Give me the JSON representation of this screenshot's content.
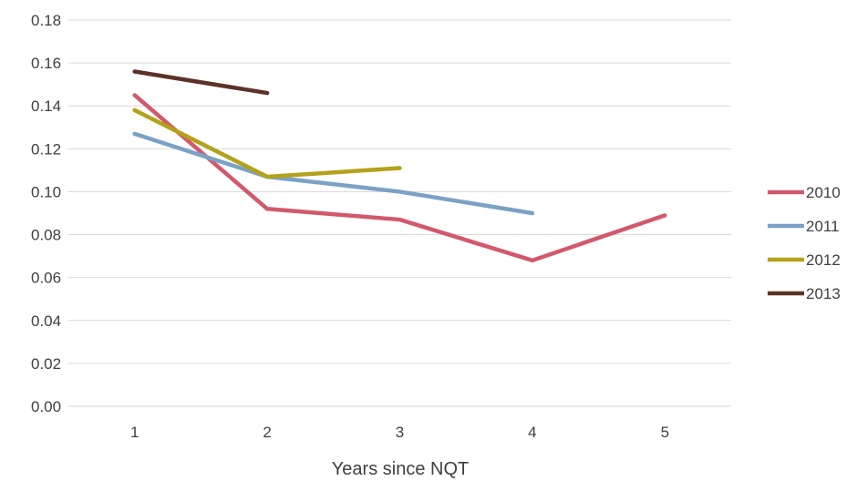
{
  "chart_data": {
    "type": "line",
    "title": "",
    "xlabel": "Years since NQT",
    "ylabel": "",
    "categories": [
      "1",
      "2",
      "3",
      "4",
      "5"
    ],
    "ylim": [
      0,
      0.18
    ],
    "yticks": [
      "0.00",
      "0.02",
      "0.04",
      "0.06",
      "0.08",
      "0.10",
      "0.12",
      "0.14",
      "0.16",
      "0.18"
    ],
    "grid": true,
    "legend_position": "right",
    "series": [
      {
        "name": "2010",
        "color": "#d2596b",
        "values": [
          0.145,
          0.092,
          0.087,
          0.068,
          0.089
        ]
      },
      {
        "name": "2011",
        "color": "#7ba1c5",
        "values": [
          0.127,
          0.107,
          0.1,
          0.09,
          null
        ]
      },
      {
        "name": "2012",
        "color": "#b3a21a",
        "values": [
          0.138,
          0.107,
          0.111,
          null,
          null
        ]
      },
      {
        "name": "2013",
        "color": "#5b3326",
        "values": [
          0.156,
          0.146,
          null,
          null,
          null
        ]
      }
    ]
  }
}
